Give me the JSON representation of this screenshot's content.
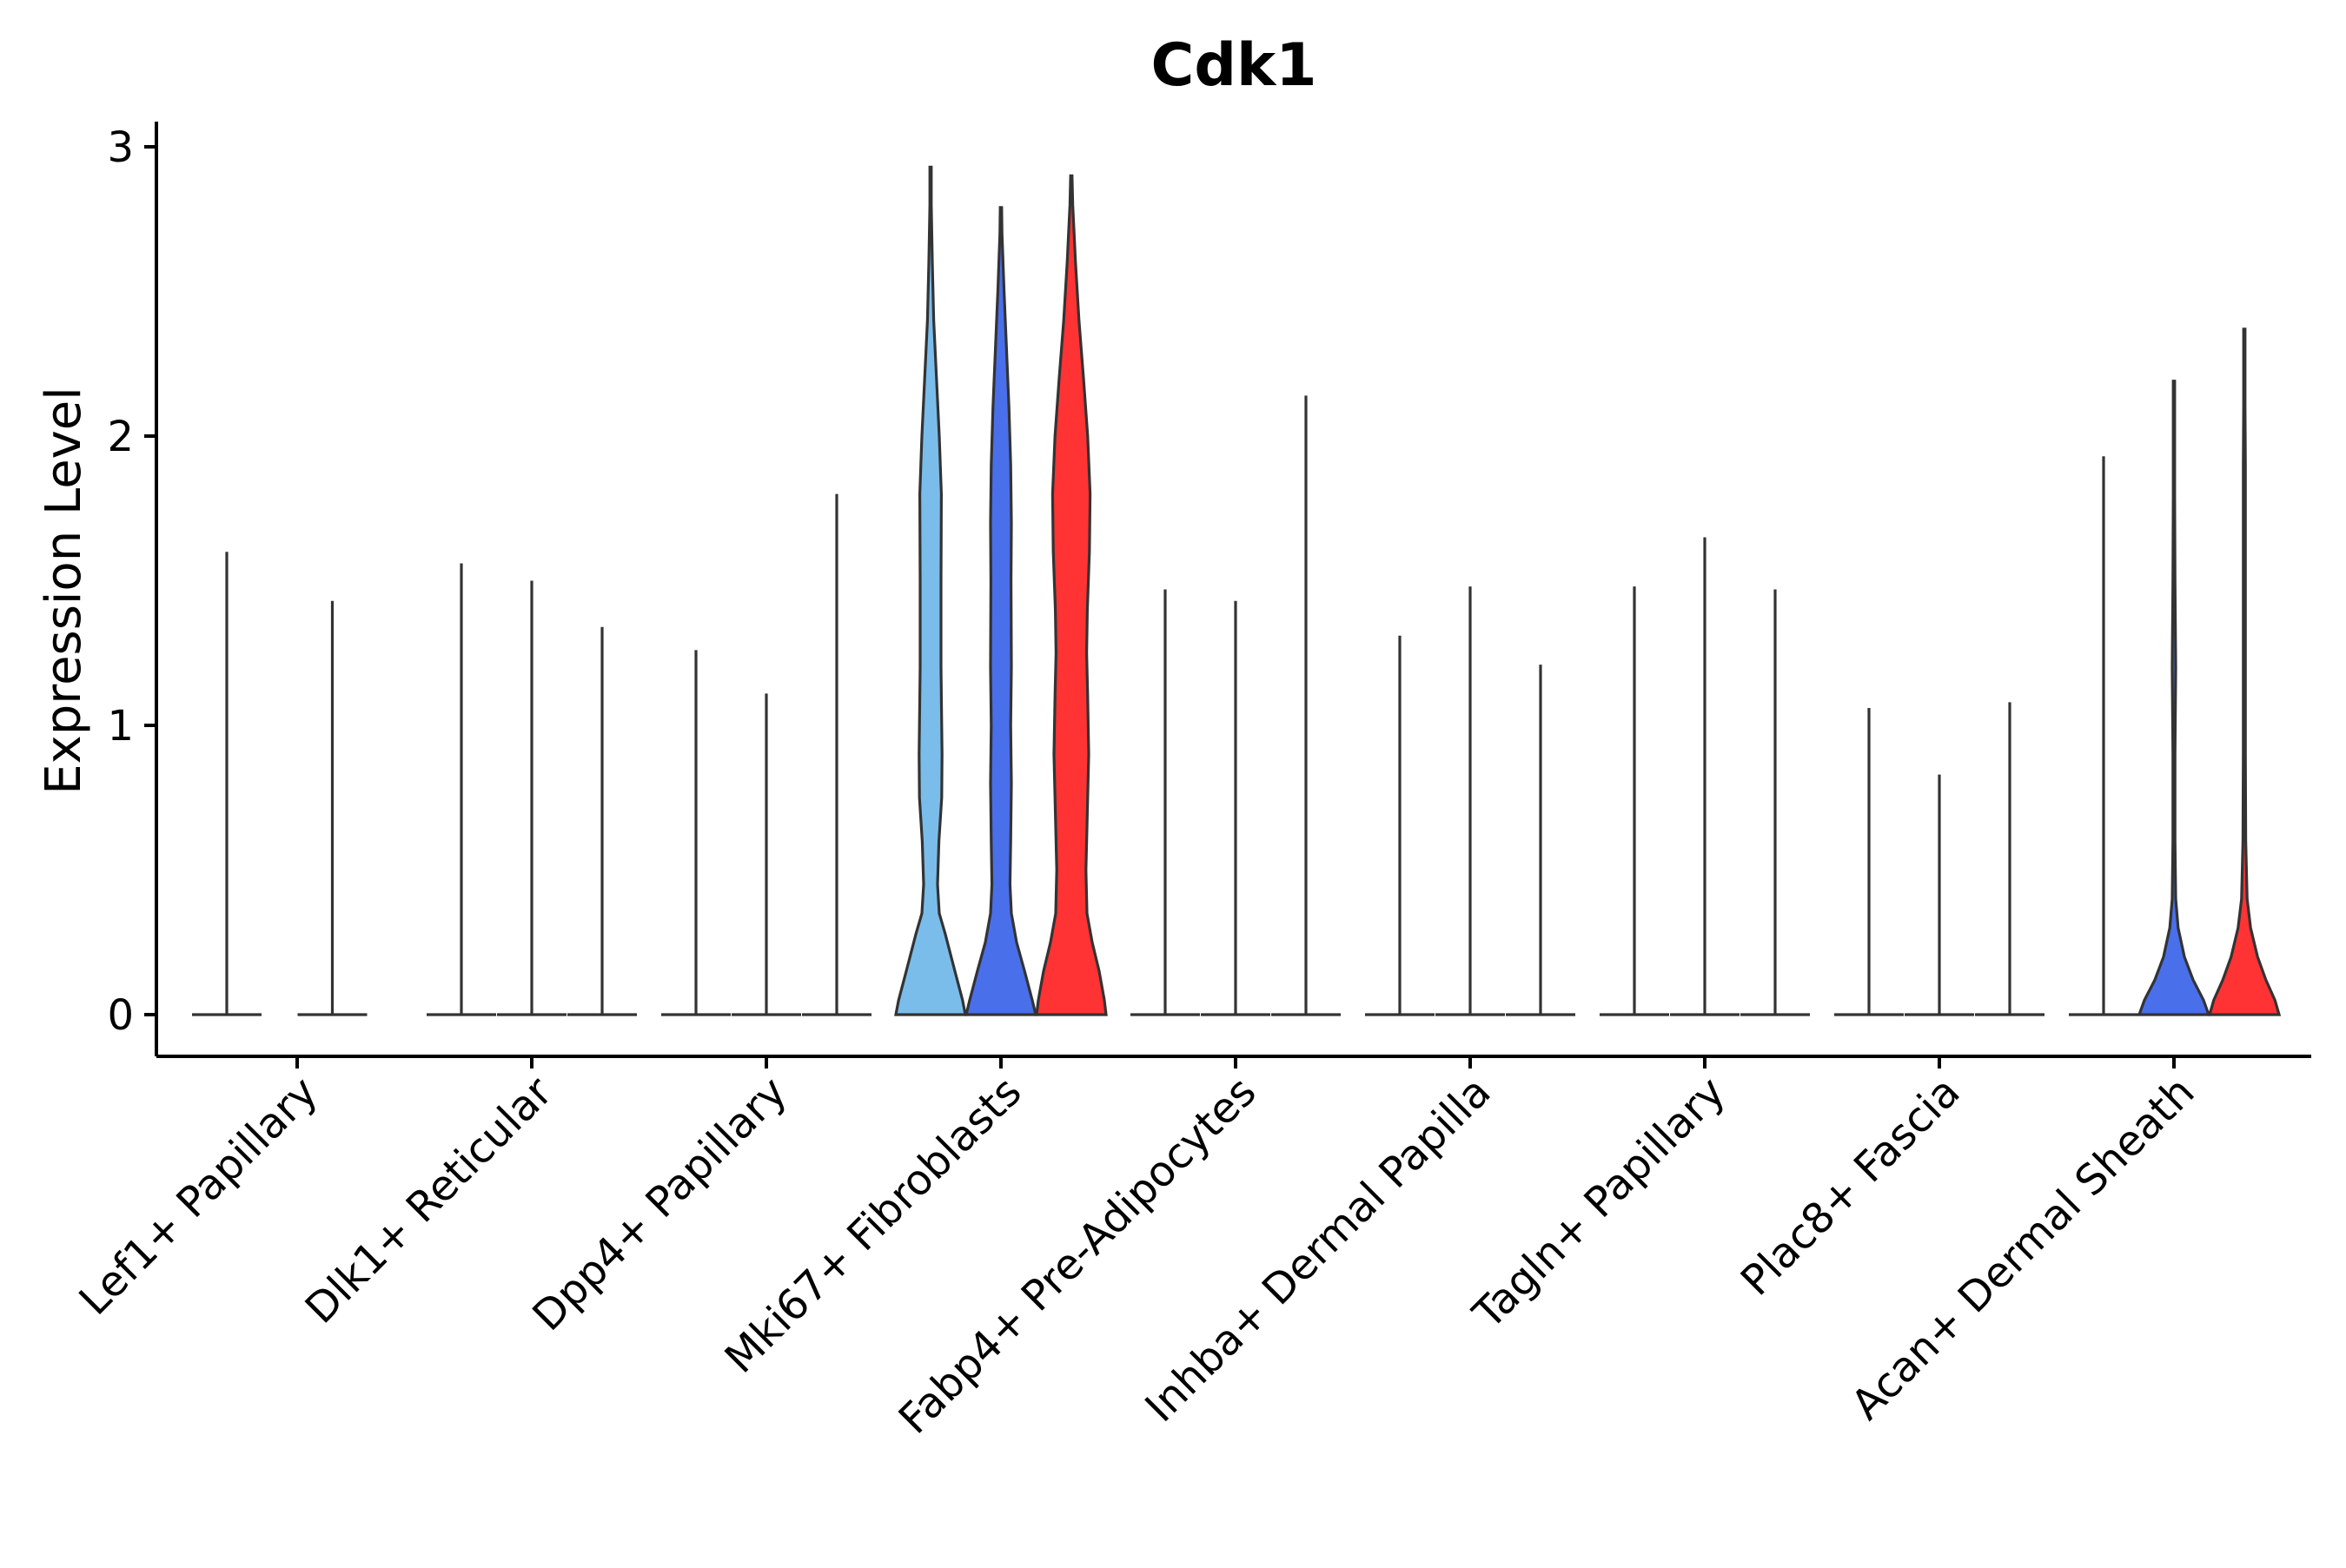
{
  "chart_data": {
    "type": "violin",
    "title": "Cdk1",
    "xlabel": "",
    "ylabel": "Expression Level",
    "ylim": [
      -0.15,
      3.08
    ],
    "yticks": [
      0,
      1,
      2,
      3
    ],
    "grid": false,
    "legend": "none",
    "categories": [
      "Lef1+ Papillary",
      "Dlk1+ Reticular",
      "Dpp4+ Papillary",
      "Mki67+ Fibroblasts",
      "Fabp4+ Pre-Adipocytes",
      "Inhba+ Dermal Papilla",
      "Tagln+ Papillary",
      "Plac8+ Fascia",
      "Acan+ Dermal Sheath"
    ],
    "groups": [
      {
        "category": "Lef1+ Papillary",
        "violins": [
          {
            "kind": "spike",
            "offset": -0.3,
            "max": 1.6,
            "color": "#ffffff"
          },
          {
            "kind": "spike",
            "offset": 0.15,
            "max": 1.43,
            "color": "#ffffff"
          }
        ]
      },
      {
        "category": "Dlk1+ Reticular",
        "violins": [
          {
            "kind": "spike",
            "offset": -0.3,
            "max": 1.56,
            "color": "#ffffff"
          },
          {
            "kind": "spike",
            "offset": 0.0,
            "max": 1.5,
            "color": "#ffffff"
          },
          {
            "kind": "spike",
            "offset": 0.3,
            "max": 1.34,
            "color": "#ffffff"
          }
        ]
      },
      {
        "category": "Dpp4+ Papillary",
        "violins": [
          {
            "kind": "spike",
            "offset": -0.3,
            "max": 1.26,
            "color": "#ffffff"
          },
          {
            "kind": "spike",
            "offset": 0.0,
            "max": 1.11,
            "color": "#ffffff"
          },
          {
            "kind": "spike",
            "offset": 0.3,
            "max": 1.8,
            "color": "#ffffff"
          }
        ]
      },
      {
        "category": "Mki67+ Fibroblasts",
        "violins": [
          {
            "kind": "full",
            "offset": -0.3,
            "max": 2.93,
            "color": "#7ABDEB",
            "profile": [
              [
                0,
                1.0
              ],
              [
                0.05,
                0.92
              ],
              [
                0.15,
                0.7
              ],
              [
                0.28,
                0.42
              ],
              [
                0.35,
                0.25
              ],
              [
                0.45,
                0.2
              ],
              [
                0.6,
                0.24
              ],
              [
                0.75,
                0.32
              ],
              [
                0.9,
                0.33
              ],
              [
                1.2,
                0.3
              ],
              [
                1.5,
                0.3
              ],
              [
                1.8,
                0.31
              ],
              [
                2.0,
                0.25
              ],
              [
                2.2,
                0.17
              ],
              [
                2.4,
                0.09
              ],
              [
                2.6,
                0.05
              ],
              [
                2.8,
                0.02
              ],
              [
                2.93,
                0.0
              ]
            ]
          },
          {
            "kind": "full",
            "offset": 0.0,
            "max": 2.79,
            "color": "#4A6FEB",
            "profile": [
              [
                0,
                1.0
              ],
              [
                0.05,
                0.9
              ],
              [
                0.15,
                0.68
              ],
              [
                0.25,
                0.45
              ],
              [
                0.35,
                0.3
              ],
              [
                0.45,
                0.26
              ],
              [
                0.6,
                0.28
              ],
              [
                0.8,
                0.3
              ],
              [
                1.0,
                0.28
              ],
              [
                1.2,
                0.3
              ],
              [
                1.5,
                0.29
              ],
              [
                1.7,
                0.3
              ],
              [
                1.9,
                0.28
              ],
              [
                2.1,
                0.23
              ],
              [
                2.3,
                0.16
              ],
              [
                2.5,
                0.09
              ],
              [
                2.7,
                0.03
              ],
              [
                2.79,
                0.0
              ]
            ]
          },
          {
            "kind": "full",
            "offset": 0.3,
            "max": 2.9,
            "color": "#FF3333",
            "profile": [
              [
                0,
                1.0
              ],
              [
                0.05,
                0.95
              ],
              [
                0.15,
                0.8
              ],
              [
                0.25,
                0.6
              ],
              [
                0.35,
                0.45
              ],
              [
                0.5,
                0.42
              ],
              [
                0.7,
                0.46
              ],
              [
                0.9,
                0.5
              ],
              [
                1.1,
                0.47
              ],
              [
                1.25,
                0.44
              ],
              [
                1.4,
                0.46
              ],
              [
                1.6,
                0.52
              ],
              [
                1.8,
                0.54
              ],
              [
                2.0,
                0.47
              ],
              [
                2.2,
                0.35
              ],
              [
                2.4,
                0.22
              ],
              [
                2.6,
                0.12
              ],
              [
                2.8,
                0.04
              ],
              [
                2.9,
                0.0
              ]
            ]
          }
        ]
      },
      {
        "category": "Fabp4+ Pre-Adipocytes",
        "violins": [
          {
            "kind": "spike",
            "offset": -0.3,
            "max": 1.47,
            "color": "#ffffff"
          },
          {
            "kind": "spike",
            "offset": 0.0,
            "max": 1.43,
            "color": "#ffffff"
          },
          {
            "kind": "spike",
            "offset": 0.3,
            "max": 2.14,
            "color": "#ffffff"
          }
        ]
      },
      {
        "category": "Inhba+ Dermal Papilla",
        "violins": [
          {
            "kind": "spike",
            "offset": -0.3,
            "max": 1.31,
            "color": "#ffffff"
          },
          {
            "kind": "spike",
            "offset": 0.0,
            "max": 1.48,
            "color": "#ffffff"
          },
          {
            "kind": "spike",
            "offset": 0.3,
            "max": 1.21,
            "color": "#ffffff"
          }
        ]
      },
      {
        "category": "Tagln+ Papillary",
        "violins": [
          {
            "kind": "spike",
            "offset": -0.3,
            "max": 1.48,
            "color": "#ffffff"
          },
          {
            "kind": "spike",
            "offset": 0.0,
            "max": 1.65,
            "color": "#ffffff"
          },
          {
            "kind": "spike",
            "offset": 0.3,
            "max": 1.47,
            "color": "#ffffff"
          }
        ]
      },
      {
        "category": "Plac8+ Fascia",
        "violins": [
          {
            "kind": "spike",
            "offset": -0.3,
            "max": 1.06,
            "color": "#ffffff"
          },
          {
            "kind": "spike",
            "offset": 0.0,
            "max": 0.83,
            "color": "#ffffff"
          },
          {
            "kind": "spike",
            "offset": 0.3,
            "max": 1.08,
            "color": "#ffffff"
          }
        ]
      },
      {
        "category": "Acan+ Dermal Sheath",
        "violins": [
          {
            "kind": "spike",
            "offset": -0.3,
            "max": 1.93,
            "color": "#ffffff"
          },
          {
            "kind": "full",
            "offset": 0.0,
            "max": 2.19,
            "color": "#4A6FEB",
            "profile": [
              [
                0,
                1.0
              ],
              [
                0.05,
                0.85
              ],
              [
                0.12,
                0.55
              ],
              [
                0.2,
                0.3
              ],
              [
                0.3,
                0.12
              ],
              [
                0.4,
                0.05
              ],
              [
                0.6,
                0.03
              ],
              [
                0.9,
                0.03
              ],
              [
                1.2,
                0.05
              ],
              [
                1.5,
                0.03
              ],
              [
                1.8,
                0.02
              ],
              [
                2.1,
                0.02
              ],
              [
                2.19,
                0.0
              ]
            ]
          },
          {
            "kind": "full",
            "offset": 0.3,
            "max": 2.37,
            "color": "#FF3333",
            "profile": [
              [
                0,
                1.0
              ],
              [
                0.05,
                0.88
              ],
              [
                0.12,
                0.62
              ],
              [
                0.2,
                0.38
              ],
              [
                0.3,
                0.18
              ],
              [
                0.4,
                0.08
              ],
              [
                0.6,
                0.04
              ],
              [
                0.9,
                0.03
              ],
              [
                1.2,
                0.03
              ],
              [
                1.6,
                0.03
              ],
              [
                1.9,
                0.03
              ],
              [
                2.1,
                0.02
              ],
              [
                2.3,
                0.01
              ],
              [
                2.37,
                0.0
              ]
            ]
          }
        ]
      }
    ]
  }
}
